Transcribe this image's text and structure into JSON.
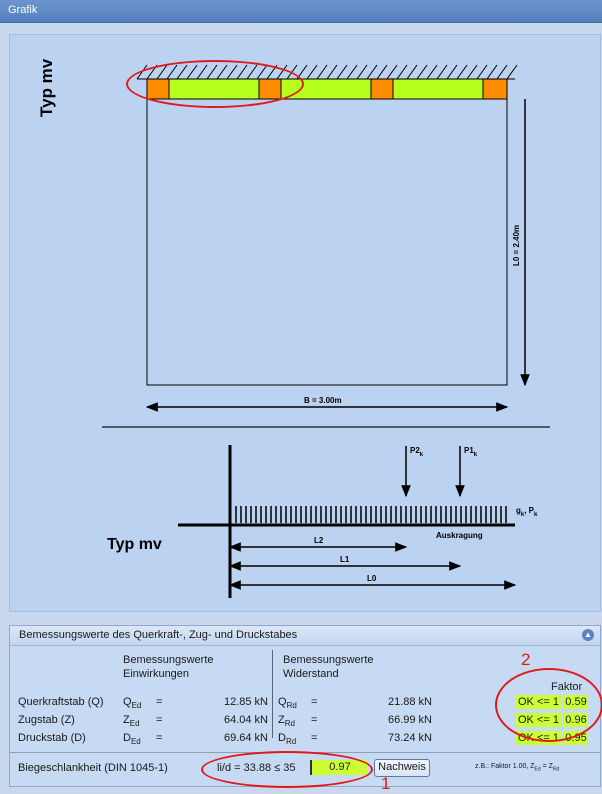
{
  "window": {
    "title": "Grafik"
  },
  "graphic": {
    "typ_label_vertical": "Typ mv",
    "typ_label_horizontal": "Typ mv",
    "dim_height": "L0 = 2.40m",
    "dim_width": "B = 3.00m",
    "load_p2": "P2",
    "load_p1": "P1",
    "load_k": "k",
    "load_dist": "g",
    "load_dist_sep": ", P",
    "auskragung": "Auskragung",
    "l2": "L2",
    "l1": "L1",
    "l0": "L0",
    "colors": {
      "support": "#ff8c00",
      "beam": "#b6ff1c"
    }
  },
  "panel": {
    "title": "Bemessungswerte des Querkraft-, Zug- und Druckstabes",
    "col_left_h1": "Bemessungswerte",
    "col_left_h2": "Einwirkungen",
    "col_right_h1": "Bemessungswerte",
    "col_right_h2": "Widerstand",
    "faktor_header": "Faktor",
    "rows": [
      {
        "label": "Querkraftstab (Q)",
        "sym": "Q",
        "sub_e": "Ed",
        "eq": "=",
        "e_val": "12.85 kN",
        "sub_r": "Rd",
        "r_val": "21.88 kN",
        "check": "OK <= 1",
        "factor": "0.59"
      },
      {
        "label": "Zugstab (Z)",
        "sym": "Z",
        "sub_e": "Ed",
        "eq": "=",
        "e_val": "64.04 kN",
        "sub_r": "Rd",
        "r_val": "66.99 kN",
        "check": "OK <= 1",
        "factor": "0.96"
      },
      {
        "label": "Druckstab (D)",
        "sym": "D",
        "sub_e": "Ed",
        "eq": "=",
        "e_val": "69.64 kN",
        "sub_r": "Rd",
        "r_val": "73.24 kN",
        "check": "OK <= 1",
        "factor": "0.95"
      }
    ],
    "biege_label": "Biegeschlankheit (DIN 1045-1)",
    "biege_formula": "li/d =  33.88  ≤ 35",
    "biege_value": "0.97",
    "nachweis_button": "Nachweis",
    "footnote": "z.B.: Faktor 1.00,  Z",
    "footnote_ed": "Ed",
    "footnote_eq": " = Z",
    "footnote_rd": "Rd"
  },
  "annotations": {
    "marker1": "1",
    "marker2": "2"
  }
}
